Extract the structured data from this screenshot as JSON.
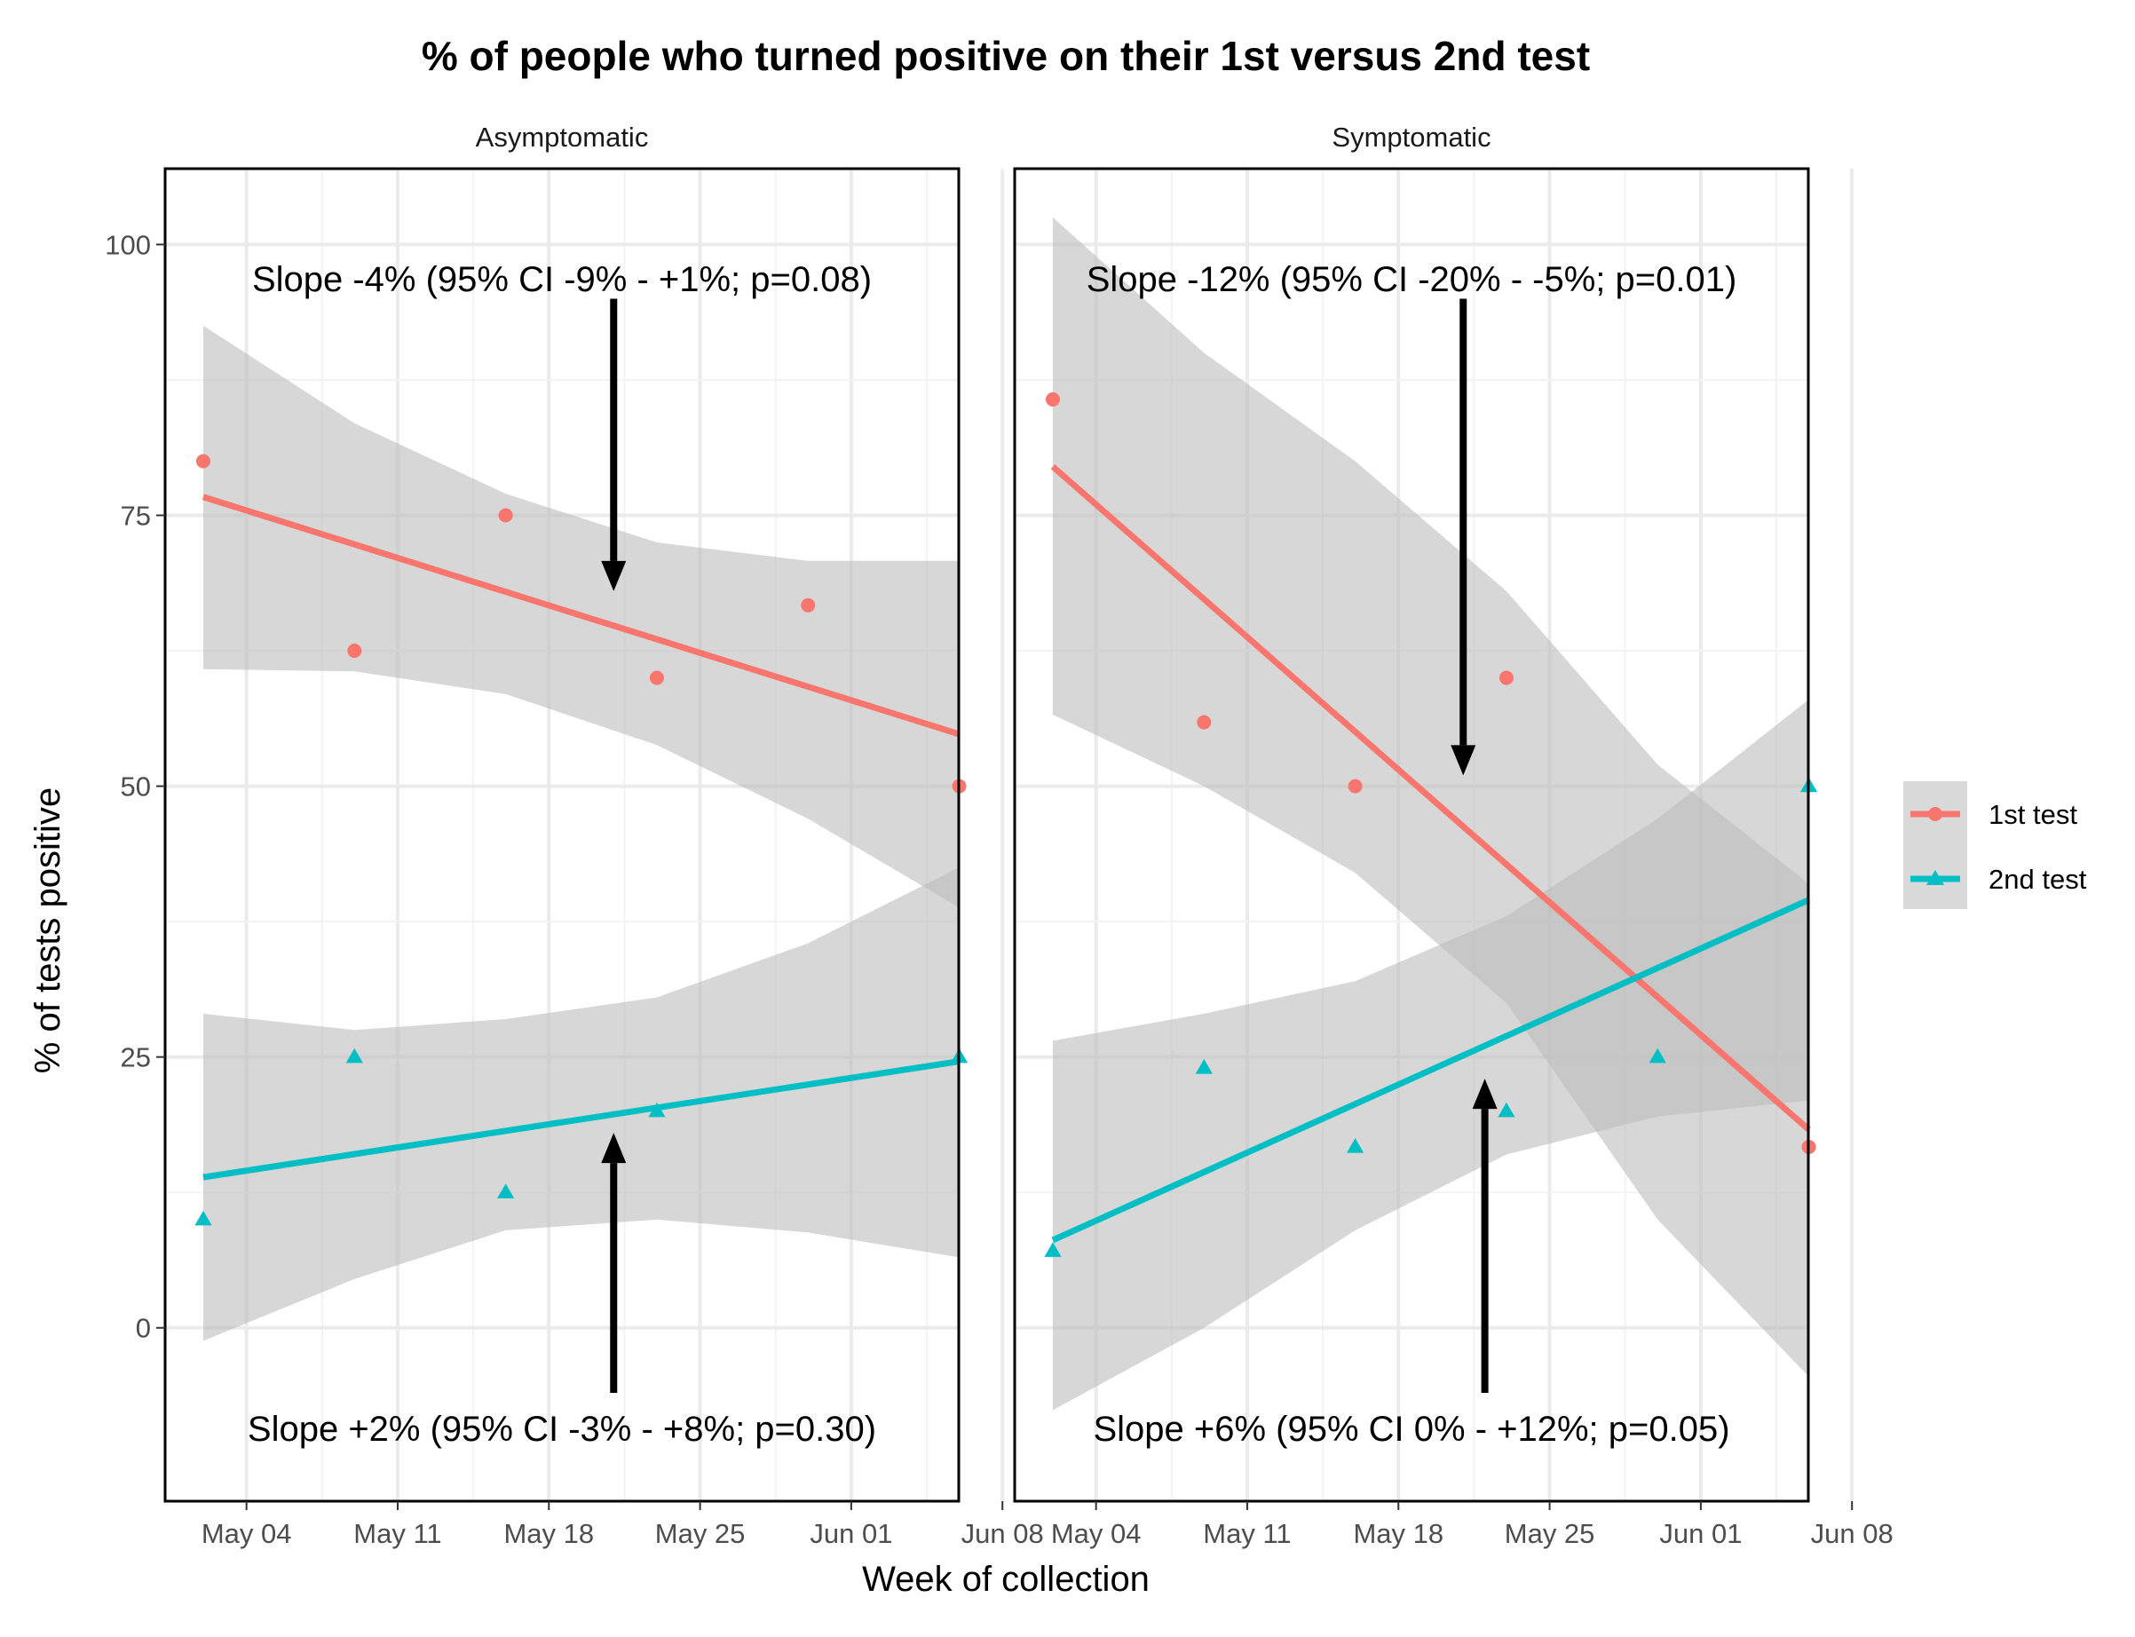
{
  "chart_data": {
    "type": "line",
    "title": "% of people who turned positive on their 1st versus 2nd test",
    "xlabel": "Week of collection",
    "ylabel": "% of tests positive",
    "x_ticks": [
      "May 04",
      "May 11",
      "May 18",
      "May 25",
      "Jun 01",
      "Jun 08"
    ],
    "y_ticks": [
      "0",
      "25",
      "50",
      "75",
      "100"
    ],
    "ylim": [
      -16,
      107
    ],
    "grid": true,
    "legend": {
      "placement": "right",
      "entries": [
        {
          "label": "1st test",
          "color": "#F8766D",
          "marker": "circle"
        },
        {
          "label": "2nd test",
          "color": "#00BFC4",
          "marker": "triangle"
        }
      ]
    },
    "colors": {
      "first_test": "#F8766D",
      "second_test": "#00BFC4",
      "ci_band": "#BDBDBD"
    },
    "panels": [
      {
        "name": "Asymptomatic",
        "annotations": {
          "top": "Slope -4% (95% CI -9% - +1%; p=0.08)",
          "bottom": "Slope +2% (95% CI -3% - +8%; p=0.30)"
        },
        "arrows": [
          {
            "x": "2020-05-21",
            "from_y": 95,
            "to_y": 68
          },
          {
            "x": "2020-05-21",
            "from_y": -6,
            "to_y": 18
          }
        ],
        "series": [
          {
            "name": "1st test",
            "points": [
              [
                "2020-05-02",
                80
              ],
              [
                "2020-05-09",
                62.5
              ],
              [
                "2020-05-16",
                75
              ],
              [
                "2020-05-23",
                60
              ],
              [
                "2020-05-30",
                66.7
              ],
              [
                "2020-06-06",
                50
              ]
            ],
            "fit": [
              [
                "2020-05-02",
                76.7
              ],
              [
                "2020-06-06",
                54.8
              ]
            ],
            "ci_upper": [
              [
                "2020-05-02",
                92.5
              ],
              [
                "2020-05-09",
                83.5
              ],
              [
                "2020-05-16",
                77
              ],
              [
                "2020-05-23",
                72.5
              ],
              [
                "2020-05-30",
                70.8
              ],
              [
                "2020-06-06",
                70.8
              ]
            ],
            "ci_lower": [
              [
                "2020-05-02",
                60.8
              ],
              [
                "2020-05-09",
                60.6
              ],
              [
                "2020-05-16",
                58.5
              ],
              [
                "2020-05-23",
                53.8
              ],
              [
                "2020-05-30",
                47
              ],
              [
                "2020-06-06",
                38.8
              ]
            ]
          },
          {
            "name": "2nd test",
            "points": [
              [
                "2020-05-02",
                10
              ],
              [
                "2020-05-09",
                25
              ],
              [
                "2020-05-16",
                12.5
              ],
              [
                "2020-05-23",
                20
              ],
              [
                "2020-06-06",
                25
              ]
            ],
            "fit": [
              [
                "2020-05-02",
                13.9
              ],
              [
                "2020-06-06",
                24.6
              ]
            ],
            "ci_upper": [
              [
                "2020-05-02",
                29
              ],
              [
                "2020-05-09",
                27.5
              ],
              [
                "2020-05-16",
                28.5
              ],
              [
                "2020-05-23",
                30.5
              ],
              [
                "2020-05-30",
                35.5
              ],
              [
                "2020-06-06",
                42.5
              ]
            ],
            "ci_lower": [
              [
                "2020-05-02",
                -1.2
              ],
              [
                "2020-05-09",
                4.5
              ],
              [
                "2020-05-16",
                9
              ],
              [
                "2020-05-23",
                10
              ],
              [
                "2020-05-30",
                8.8
              ],
              [
                "2020-06-06",
                6.5
              ]
            ]
          }
        ]
      },
      {
        "name": "Symptomatic",
        "annotations": {
          "top": "Slope -12% (95% CI -20% - -5%; p=0.01)",
          "bottom": "Slope +6% (95% CI 0% - +12%; p=0.05)"
        },
        "arrows": [
          {
            "x": "2020-05-21",
            "from_y": 95,
            "to_y": 51
          },
          {
            "x": "2020-05-22",
            "from_y": -6,
            "to_y": 23
          }
        ],
        "series": [
          {
            "name": "1st test",
            "points": [
              [
                "2020-05-02",
                85.7
              ],
              [
                "2020-05-09",
                55.9
              ],
              [
                "2020-05-16",
                50
              ],
              [
                "2020-05-23",
                60
              ],
              [
                "2020-06-06",
                16.7
              ]
            ],
            "fit": [
              [
                "2020-05-02",
                79.5
              ],
              [
                "2020-06-06",
                18.3
              ]
            ],
            "ci_upper": [
              [
                "2020-05-02",
                102.5
              ],
              [
                "2020-05-09",
                90
              ],
              [
                "2020-05-16",
                80
              ],
              [
                "2020-05-23",
                68
              ],
              [
                "2020-05-30",
                52
              ],
              [
                "2020-06-06",
                41
              ]
            ],
            "ci_lower": [
              [
                "2020-05-02",
                56.6
              ],
              [
                "2020-05-09",
                50
              ],
              [
                "2020-05-16",
                42
              ],
              [
                "2020-05-23",
                30
              ],
              [
                "2020-05-30",
                10
              ],
              [
                "2020-06-06",
                -4.5
              ]
            ]
          },
          {
            "name": "2nd test",
            "points": [
              [
                "2020-05-02",
                7.1
              ],
              [
                "2020-05-09",
                24
              ],
              [
                "2020-05-16",
                16.7
              ],
              [
                "2020-05-23",
                20
              ],
              [
                "2020-05-30",
                25
              ],
              [
                "2020-06-06",
                50
              ]
            ],
            "fit": [
              [
                "2020-05-02",
                8.1
              ],
              [
                "2020-06-06",
                39.5
              ]
            ],
            "ci_upper": [
              [
                "2020-05-02",
                26.5
              ],
              [
                "2020-05-09",
                29
              ],
              [
                "2020-05-16",
                32
              ],
              [
                "2020-05-23",
                38
              ],
              [
                "2020-05-30",
                47
              ],
              [
                "2020-06-06",
                58
              ]
            ],
            "ci_lower": [
              [
                "2020-05-02",
                -7.6
              ],
              [
                "2020-05-09",
                0
              ],
              [
                "2020-05-16",
                9
              ],
              [
                "2020-05-23",
                16
              ],
              [
                "2020-05-30",
                19.5
              ],
              [
                "2020-06-06",
                21
              ]
            ]
          }
        ]
      }
    ]
  }
}
